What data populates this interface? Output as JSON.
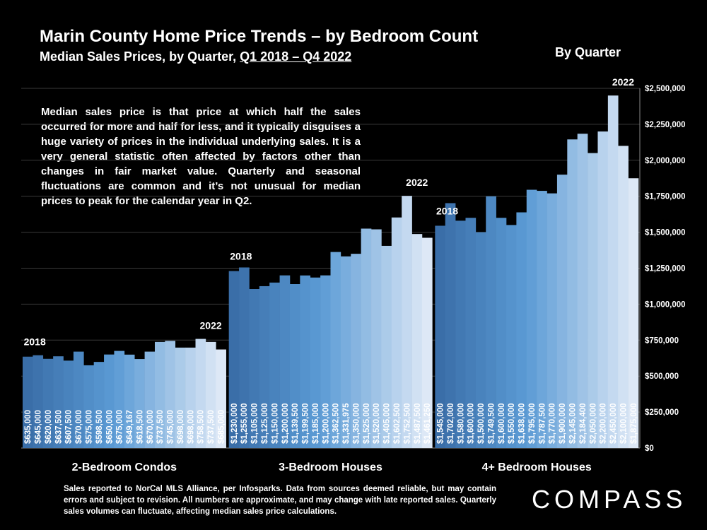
{
  "title": "Marin County Home Price Trends – by Bedroom Count",
  "subtitle_prefix": "Median Sales Prices, by Quarter, ",
  "subtitle_range": "Q1 2018 – Q4 2022",
  "by_quarter_label": "By Quarter",
  "annotation": "Median sales price is that price at which half the sales occurred for more and half for less, and it typically disguises a huge variety of prices in the individual underlying sales. It is a very general statistic often affected by factors other than changes in fair market value. Quarterly and seasonal fluctuations are common and it’s not unusual for median prices to peak for the calendar year in Q2.",
  "footnote": "Sales reported to NorCal MLS Alliance, per Infosparks. Data from sources deemed reliable, but may contain errors and subject to revision. All numbers are approximate, and may change with late reported sales. Quarterly sales volumes can fluctuate, affecting median sales price calculations.",
  "logo_text": "COMPASS",
  "colors": {
    "background": "#000000",
    "bar_dark": "#3a6ea8",
    "bar_mid": "#5b9bd5",
    "bar_light": "#dde8f6",
    "grid": "#3a3a3a",
    "text": "#ffffff"
  },
  "chart_data": {
    "type": "bar",
    "title": "Marin County Home Price Trends – by Bedroom Count",
    "ylim": [
      0,
      2500000
    ],
    "ytick_values": [
      0,
      250000,
      500000,
      750000,
      1000000,
      1250000,
      1500000,
      1750000,
      2000000,
      2250000,
      2500000
    ],
    "ytick_labels": [
      "$0",
      "$250,000",
      "$500,000",
      "$750,000",
      "$1,000,000",
      "$1,250,000",
      "$1,500,000",
      "$1,750,000",
      "$2,000,000",
      "$2,250,000",
      "$2,500,000"
    ],
    "y_axis_position": "right",
    "grid": true,
    "series": [
      {
        "name": "2-Bedroom Condos",
        "start_label": "2018",
        "end_label": "2022",
        "values": [
          635000,
          645000,
          620000,
          637500,
          607500,
          670000,
          575000,
          598500,
          650000,
          675000,
          649167,
          618500,
          670000,
          737500,
          745000,
          698000,
          698000,
          758500,
          737500,
          685000
        ],
        "value_labels": [
          "$635,000",
          "$645,000",
          "$620,000",
          "$637,500",
          "$607,500",
          "$670,000",
          "$575,000",
          "$598,500",
          "$650,000",
          "$675,000",
          "$649,167",
          "$618,500",
          "$670,000",
          "$737,500",
          "$745,000",
          "$698,000",
          "$698,000",
          "$758,500",
          "$737,500",
          "$685,000"
        ]
      },
      {
        "name": "3-Bedroom Houses",
        "start_label": "2018",
        "end_label": "2022",
        "values": [
          1230000,
          1255000,
          1105000,
          1125000,
          1150000,
          1200000,
          1139500,
          1199500,
          1185000,
          1200000,
          1362500,
          1331975,
          1350000,
          1525000,
          1520000,
          1405000,
          1602500,
          1752500,
          1487500,
          1461250
        ],
        "value_labels": [
          "$1,230,000",
          "$1,255,000",
          "$1,105,000",
          "$1,125,000",
          "$1,150,000",
          "$1,200,000",
          "$1,139,500",
          "$1,199,500",
          "$1,185,000",
          "$1,200,000",
          "$1,362,500",
          "$1,331,975",
          "$1,350,000",
          "$1,525,000",
          "$1,520,000",
          "$1,405,000",
          "$1,602,500",
          "$1,752,500",
          "$1,487,500",
          "$1,461,250"
        ]
      },
      {
        "name": "4+ Bedroom Houses",
        "start_label": "2018",
        "end_label": "2022",
        "values": [
          1545000,
          1702000,
          1580000,
          1600000,
          1500000,
          1749500,
          1600000,
          1550000,
          1638000,
          1795000,
          1787500,
          1770000,
          1900000,
          2145000,
          2184400,
          2050000,
          2200000,
          2450000,
          2100000,
          1875000
        ],
        "value_labels": [
          "$1,545,000",
          "$1,702,000",
          "$1,580,000",
          "$1,600,000",
          "$1,500,000",
          "$1,749,500",
          "$1,600,000",
          "$1,550,000",
          "$1,638,000",
          "$1,795,000",
          "$1,787,500",
          "$1,770,000",
          "$1,900,000",
          "$2,145,000",
          "$2,184,400",
          "$2,050,000",
          "$2,200,000",
          "$2,450,000",
          "$2,100,000",
          "$1,875,000"
        ]
      }
    ]
  }
}
